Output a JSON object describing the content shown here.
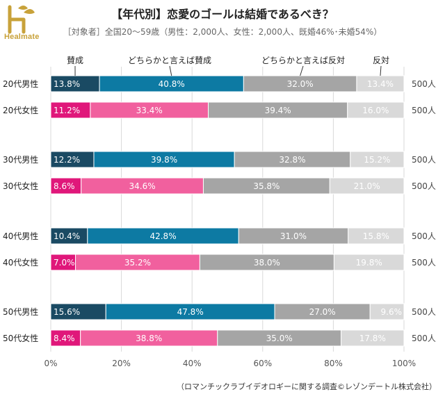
{
  "header": {
    "logo_text": "Healmate",
    "title": "【年代別】恋愛のゴールは結婚であるべき？",
    "subtitle": "［対象者］全国20～59歳（男性：2,000人、女性：2,000人、既婚46%･未婚54%）"
  },
  "footer": {
    "source": "（ロマンチックラブイデオロギーに関する調査©レゾンデートル株式会社）"
  },
  "chart_data": {
    "type": "bar",
    "orientation": "horizontal",
    "stacked": true,
    "title": "【年代別】恋愛のゴールは結婚であるべき？",
    "xlim": [
      0,
      100
    ],
    "x_ticks": [
      "0%",
      "20%",
      "40%",
      "60%",
      "80%",
      "100%"
    ],
    "grid": true,
    "legend_position": "top",
    "series": [
      {
        "name": "賛成",
        "color_male": "#1a4a63",
        "color_female": "#e0177a"
      },
      {
        "name": "どちらかと言えば賛成",
        "color_male": "#0d7aa3",
        "color_female": "#f1609e"
      },
      {
        "name": "どちらかと言えば反対",
        "color_male": "#a5a5a5",
        "color_female": "#a5a5a5"
      },
      {
        "name": "反対",
        "color_male": "#d9d9d9",
        "color_female": "#d9d9d9"
      }
    ],
    "rows": [
      {
        "label": "20代男性",
        "gender": "male",
        "values": [
          13.8,
          40.8,
          32.0,
          13.4
        ],
        "labels": [
          "13.8%",
          "40.8%",
          "32.0%",
          "13.4%"
        ],
        "n": "500人"
      },
      {
        "label": "20代女性",
        "gender": "female",
        "values": [
          11.2,
          33.4,
          39.4,
          16.0
        ],
        "labels": [
          "11.2%",
          "33.4%",
          "39.4%",
          "16.0%"
        ],
        "n": "500人"
      },
      {
        "label": "30代男性",
        "gender": "male",
        "values": [
          12.2,
          39.8,
          32.8,
          15.2
        ],
        "labels": [
          "12.2%",
          "39.8%",
          "32.8%",
          "15.2%"
        ],
        "n": "500人"
      },
      {
        "label": "30代女性",
        "gender": "female",
        "values": [
          8.6,
          34.6,
          35.8,
          21.0
        ],
        "labels": [
          "8.6%",
          "34.6%",
          "35.8%",
          "21.0%"
        ],
        "n": "500人"
      },
      {
        "label": "40代男性",
        "gender": "male",
        "values": [
          10.4,
          42.8,
          31.0,
          15.8
        ],
        "labels": [
          "10.4%",
          "42.8%",
          "31.0%",
          "15.8%"
        ],
        "n": "500人"
      },
      {
        "label": "40代女性",
        "gender": "female",
        "values": [
          7.0,
          35.2,
          38.0,
          19.8
        ],
        "labels": [
          "7.0%",
          "35.2%",
          "38.0%",
          "19.8%"
        ],
        "n": "500人"
      },
      {
        "label": "50代男性",
        "gender": "male",
        "values": [
          15.6,
          47.8,
          27.0,
          9.6
        ],
        "labels": [
          "15.6%",
          "47.8%",
          "27.0%",
          "9.6%"
        ],
        "n": "500人"
      },
      {
        "label": "50代女性",
        "gender": "female",
        "values": [
          8.4,
          38.8,
          35.0,
          17.8
        ],
        "labels": [
          "8.4%",
          "38.8%",
          "35.0%",
          "17.8%"
        ],
        "n": "500人"
      }
    ]
  }
}
